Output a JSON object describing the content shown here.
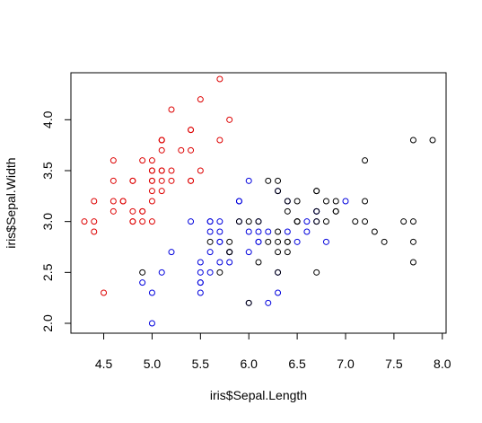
{
  "chart_data": {
    "type": "scatter",
    "title": "",
    "xlabel": "iris$Sepal.Length",
    "ylabel": "iris$Sepal.Width",
    "xlim": [
      4.3,
      7.9
    ],
    "ylim": [
      2.0,
      4.4
    ],
    "x_ticks": [
      "4.5",
      "5.0",
      "5.5",
      "6.0",
      "6.5",
      "7.0",
      "7.5",
      "8.0"
    ],
    "y_ticks": [
      "2.0",
      "2.5",
      "3.0",
      "3.5",
      "4.0"
    ],
    "grid": false,
    "legend": "none",
    "marker": "open-circle",
    "series": [
      {
        "color": "#dd0000",
        "points": [
          [
            5.1,
            3.5
          ],
          [
            4.9,
            3.0
          ],
          [
            4.7,
            3.2
          ],
          [
            4.6,
            3.1
          ],
          [
            5.0,
            3.6
          ],
          [
            5.4,
            3.9
          ],
          [
            4.6,
            3.4
          ],
          [
            5.0,
            3.4
          ],
          [
            4.4,
            2.9
          ],
          [
            4.9,
            3.1
          ],
          [
            5.4,
            3.7
          ],
          [
            4.8,
            3.4
          ],
          [
            4.8,
            3.0
          ],
          [
            4.3,
            3.0
          ],
          [
            5.8,
            4.0
          ],
          [
            5.7,
            4.4
          ],
          [
            5.4,
            3.9
          ],
          [
            5.1,
            3.5
          ],
          [
            5.7,
            3.8
          ],
          [
            5.1,
            3.8
          ],
          [
            5.4,
            3.4
          ],
          [
            5.1,
            3.7
          ],
          [
            4.6,
            3.6
          ],
          [
            5.1,
            3.3
          ],
          [
            4.8,
            3.4
          ],
          [
            5.0,
            3.0
          ],
          [
            5.0,
            3.4
          ],
          [
            5.2,
            3.5
          ],
          [
            5.2,
            3.4
          ],
          [
            4.7,
            3.2
          ],
          [
            4.8,
            3.1
          ],
          [
            5.4,
            3.4
          ],
          [
            5.2,
            4.1
          ],
          [
            5.5,
            4.2
          ],
          [
            4.9,
            3.1
          ],
          [
            5.0,
            3.2
          ],
          [
            5.5,
            3.5
          ],
          [
            4.9,
            3.6
          ],
          [
            4.4,
            3.0
          ],
          [
            5.1,
            3.4
          ],
          [
            5.0,
            3.5
          ],
          [
            4.5,
            2.3
          ],
          [
            4.4,
            3.2
          ],
          [
            5.0,
            3.5
          ],
          [
            5.1,
            3.8
          ],
          [
            4.8,
            3.0
          ],
          [
            5.1,
            3.8
          ],
          [
            4.6,
            3.2
          ],
          [
            5.3,
            3.7
          ],
          [
            5.0,
            3.3
          ]
        ]
      },
      {
        "color": "#0000dd",
        "points": [
          [
            5.9,
            3.2
          ],
          [
            5.5,
            2.3
          ],
          [
            6.5,
            2.8
          ],
          [
            5.7,
            2.8
          ],
          [
            6.3,
            3.3
          ],
          [
            4.9,
            2.4
          ],
          [
            6.6,
            2.9
          ],
          [
            5.2,
            2.7
          ],
          [
            5.0,
            2.0
          ],
          [
            5.9,
            3.0
          ],
          [
            6.0,
            2.2
          ],
          [
            6.1,
            2.9
          ],
          [
            5.6,
            2.9
          ],
          [
            6.7,
            3.1
          ],
          [
            5.6,
            3.0
          ],
          [
            5.8,
            2.7
          ],
          [
            6.2,
            2.2
          ],
          [
            5.6,
            2.5
          ],
          [
            5.9,
            3.2
          ],
          [
            6.1,
            2.8
          ],
          [
            6.3,
            2.5
          ],
          [
            6.1,
            2.8
          ],
          [
            6.4,
            2.9
          ],
          [
            6.6,
            3.0
          ],
          [
            6.8,
            2.8
          ],
          [
            6.7,
            3.0
          ],
          [
            6.0,
            2.9
          ],
          [
            5.7,
            2.6
          ],
          [
            5.5,
            2.4
          ],
          [
            5.5,
            2.4
          ],
          [
            5.8,
            2.7
          ],
          [
            6.0,
            2.7
          ],
          [
            5.4,
            3.0
          ],
          [
            6.0,
            3.4
          ],
          [
            6.7,
            3.1
          ],
          [
            6.3,
            2.3
          ],
          [
            5.6,
            3.0
          ],
          [
            5.5,
            2.5
          ],
          [
            5.5,
            2.6
          ],
          [
            6.1,
            3.0
          ],
          [
            5.8,
            2.6
          ],
          [
            5.0,
            2.3
          ],
          [
            5.6,
            2.7
          ],
          [
            5.7,
            3.0
          ],
          [
            5.7,
            2.9
          ],
          [
            6.2,
            2.9
          ],
          [
            5.1,
            2.5
          ],
          [
            5.7,
            2.8
          ],
          [
            7.0,
            3.2
          ],
          [
            6.4,
            3.2
          ]
        ]
      },
      {
        "color": "#000000",
        "points": [
          [
            6.3,
            3.3
          ],
          [
            5.8,
            2.7
          ],
          [
            7.1,
            3.0
          ],
          [
            6.3,
            2.9
          ],
          [
            6.5,
            3.0
          ],
          [
            7.6,
            3.0
          ],
          [
            4.9,
            2.5
          ],
          [
            7.3,
            2.9
          ],
          [
            6.7,
            2.5
          ],
          [
            7.2,
            3.6
          ],
          [
            6.5,
            3.2
          ],
          [
            6.4,
            2.7
          ],
          [
            6.8,
            3.0
          ],
          [
            5.7,
            2.5
          ],
          [
            5.8,
            2.8
          ],
          [
            6.4,
            3.2
          ],
          [
            6.5,
            3.0
          ],
          [
            7.7,
            3.8
          ],
          [
            7.7,
            2.6
          ],
          [
            6.0,
            2.2
          ],
          [
            6.9,
            3.2
          ],
          [
            5.6,
            2.8
          ],
          [
            7.7,
            2.8
          ],
          [
            6.3,
            2.7
          ],
          [
            6.7,
            3.3
          ],
          [
            7.2,
            3.2
          ],
          [
            6.2,
            2.8
          ],
          [
            6.1,
            3.0
          ],
          [
            6.4,
            2.8
          ],
          [
            7.2,
            3.0
          ],
          [
            7.4,
            2.8
          ],
          [
            7.9,
            3.8
          ],
          [
            6.4,
            2.8
          ],
          [
            6.3,
            2.8
          ],
          [
            6.1,
            2.6
          ],
          [
            7.7,
            3.0
          ],
          [
            6.3,
            3.4
          ],
          [
            6.4,
            3.1
          ],
          [
            6.0,
            3.0
          ],
          [
            6.9,
            3.1
          ],
          [
            6.7,
            3.1
          ],
          [
            6.9,
            3.1
          ],
          [
            5.8,
            2.7
          ],
          [
            6.8,
            3.2
          ],
          [
            6.7,
            3.3
          ],
          [
            6.7,
            3.0
          ],
          [
            6.3,
            2.5
          ],
          [
            6.5,
            3.0
          ],
          [
            6.2,
            3.4
          ],
          [
            5.9,
            3.0
          ]
        ]
      }
    ]
  }
}
